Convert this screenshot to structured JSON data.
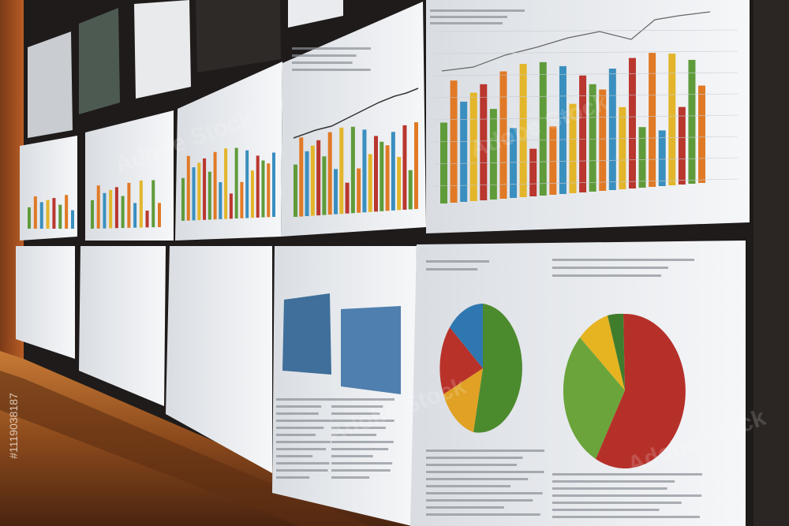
{
  "watermark": {
    "brand": "Adobe Stock",
    "id": "#1119038187"
  }
}
